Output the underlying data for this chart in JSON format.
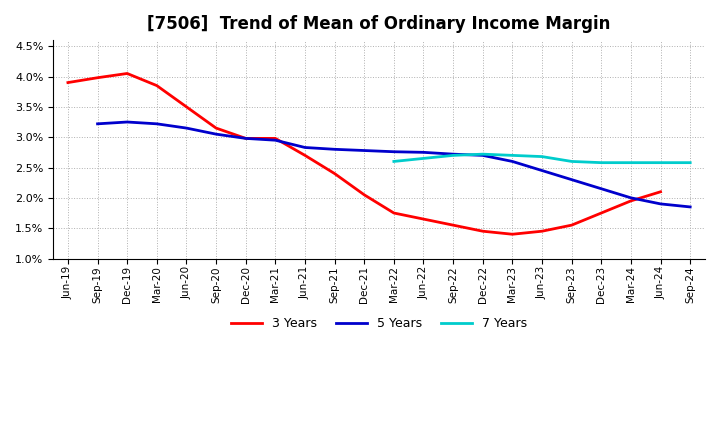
{
  "title": "[7506]  Trend of Mean of Ordinary Income Margin",
  "x_labels": [
    "Jun-19",
    "Sep-19",
    "Dec-19",
    "Mar-20",
    "Jun-20",
    "Sep-20",
    "Dec-20",
    "Mar-21",
    "Jun-21",
    "Sep-21",
    "Dec-21",
    "Mar-22",
    "Jun-22",
    "Sep-22",
    "Dec-22",
    "Mar-23",
    "Jun-23",
    "Sep-23",
    "Dec-23",
    "Mar-24",
    "Jun-24",
    "Sep-24"
  ],
  "series_3y": {
    "label": "3 Years",
    "color": "#ff0000",
    "data": [
      3.9,
      3.98,
      4.05,
      3.85,
      3.5,
      3.15,
      2.98,
      2.98,
      2.7,
      2.4,
      2.05,
      1.75,
      1.65,
      1.55,
      1.45,
      1.4,
      1.45,
      1.55,
      1.75,
      1.95,
      2.1,
      null
    ]
  },
  "series_5y": {
    "label": "5 Years",
    "color": "#0000cc",
    "data": [
      null,
      3.22,
      3.25,
      3.22,
      3.15,
      3.05,
      2.98,
      2.95,
      2.83,
      2.8,
      2.78,
      2.76,
      2.75,
      2.72,
      2.7,
      2.6,
      2.45,
      2.3,
      2.15,
      2.0,
      1.9,
      1.85
    ]
  },
  "series_7y": {
    "label": "7 Years",
    "color": "#00cccc",
    "data": [
      null,
      null,
      null,
      null,
      null,
      null,
      null,
      null,
      null,
      null,
      null,
      2.6,
      2.65,
      2.7,
      2.72,
      2.7,
      2.68,
      2.6,
      2.58,
      2.58,
      2.58,
      2.58
    ]
  },
  "series_10y": {
    "color": "#008000",
    "data": [
      null,
      null,
      null,
      null,
      null,
      null,
      null,
      null,
      null,
      null,
      null,
      null,
      null,
      null,
      null,
      null,
      null,
      null,
      null,
      null,
      null,
      null
    ]
  },
  "ylim": [
    1.0,
    4.6
  ],
  "yticks": [
    1.0,
    1.5,
    2.0,
    2.5,
    3.0,
    3.5,
    4.0,
    4.5
  ],
  "background_color": "#ffffff",
  "plot_bg_color": "#ffffff",
  "grid_color": "#b0b0b0",
  "title_fontsize": 12,
  "legend_fontsize": 9
}
